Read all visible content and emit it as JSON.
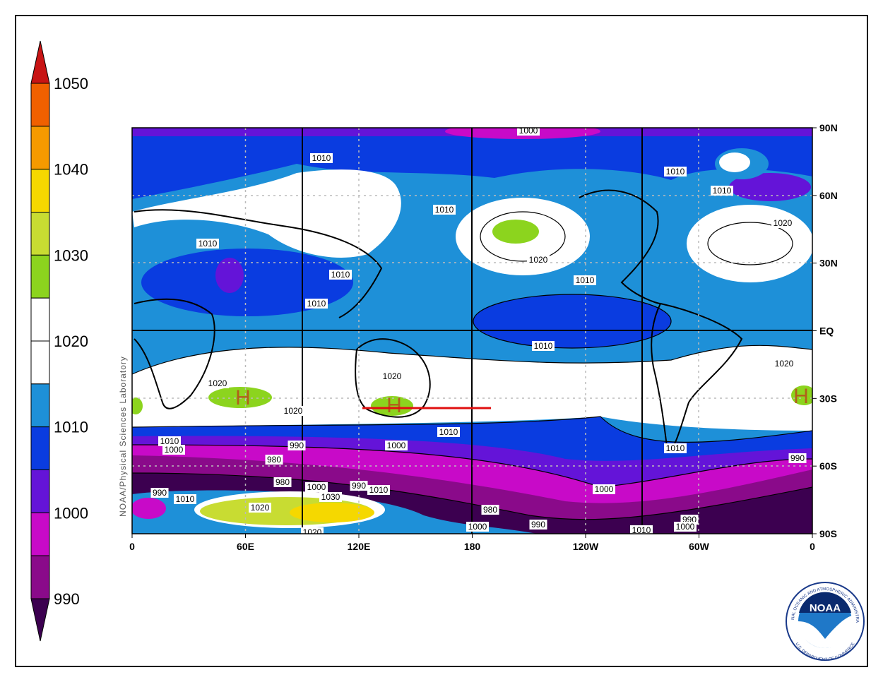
{
  "colorbar": {
    "labels": [
      "1050",
      "1040",
      "1030",
      "1020",
      "1010",
      "1000",
      "990"
    ]
  },
  "map": {
    "x_labels": [
      "0",
      "60E",
      "120E",
      "180",
      "120W",
      "60W",
      "0"
    ],
    "y_labels": [
      "90N",
      "60N",
      "30N",
      "EQ",
      "30S",
      "60S",
      "90S"
    ],
    "credit": "NOAA/Physical Sciences Laboratory",
    "contour_labels": [
      "1000",
      "1010",
      "1010",
      "1010",
      "1010",
      "1010",
      "1020",
      "1020",
      "1010",
      "1010",
      "1010",
      "1010",
      "1020",
      "1020",
      "1020",
      "1020",
      "1010",
      "1010",
      "1000",
      "990",
      "1000",
      "1010",
      "980",
      "990",
      "980",
      "1000",
      "990",
      "1010",
      "1030",
      "990",
      "1010",
      "1020",
      "1000",
      "980",
      "990",
      "1000",
      "1010",
      "990",
      "1000",
      "1020"
    ],
    "highs": [
      "H",
      "H",
      "H"
    ]
  },
  "logo": {
    "name": "NOAA",
    "top_text": "NATIONAL OCEANIC AND ATMOSPHERIC ADMINISTRATION",
    "bottom_text": "U.S. DEPARTMENT OF COMMERCE"
  }
}
